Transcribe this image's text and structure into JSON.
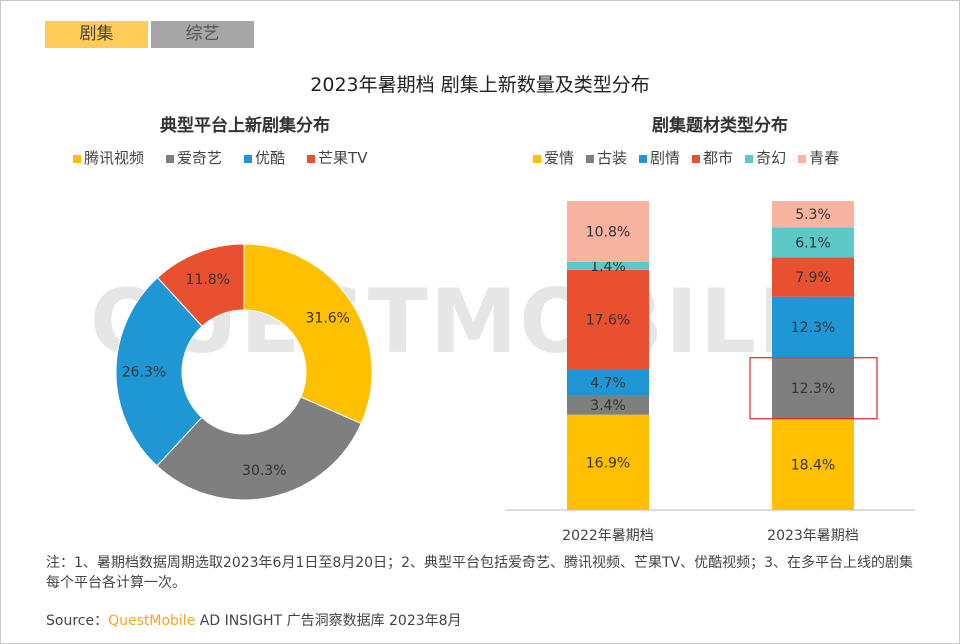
{
  "tabs": [
    {
      "label": "剧集",
      "active": true
    },
    {
      "label": "综艺",
      "active": false
    }
  ],
  "title": "2023年暑期档 剧集上新数量及类型分布",
  "watermark": "QUESTMOBILE",
  "chart_data": [
    {
      "type": "pie",
      "donut": true,
      "title": "典型平台上新剧集分布",
      "legend": [
        "腾讯视频",
        "爱奇艺",
        "优酷",
        "芒果TV"
      ],
      "values": [
        31.6,
        30.3,
        26.3,
        11.8
      ],
      "labels": [
        "31.6%",
        "30.3%",
        "26.3%",
        "11.8%"
      ],
      "colors": [
        "#ffc000",
        "#7f7f7f",
        "#1f97d4",
        "#e8502f"
      ],
      "legend_placement": "top"
    },
    {
      "type": "bar",
      "stacked": true,
      "title": "剧集题材类型分布",
      "categories": [
        "2022年暑期档",
        "2023年暑期档"
      ],
      "series": [
        {
          "name": "爱情",
          "values": [
            16.9,
            18.4
          ],
          "color": "#ffc000"
        },
        {
          "name": "古装",
          "values": [
            3.4,
            12.3
          ],
          "color": "#7f7f7f"
        },
        {
          "name": "剧情",
          "values": [
            4.7,
            12.3
          ],
          "color": "#1f97d4"
        },
        {
          "name": "都市",
          "values": [
            17.6,
            7.9
          ],
          "color": "#e8502f"
        },
        {
          "name": "奇幻",
          "values": [
            1.4,
            6.1
          ],
          "color": "#5cc8c8"
        },
        {
          "name": "青春",
          "values": [
            10.8,
            5.3
          ],
          "color": "#f8b4a0"
        }
      ],
      "highlight": {
        "category": "2023年暑期档",
        "series": "古装",
        "color": "#d9262b"
      },
      "legend_placement": "top",
      "grid": false
    }
  ],
  "note": "注：1、暑期档数据周期选取2023年6月1日至8月20日；2、典型平台包括爱奇艺、腾讯视频、芒果TV、优酷视频；3、在多平台上线的剧集每个平台各计算一次。",
  "source": {
    "prefix": "Source：",
    "brand": "QuestMobile",
    "suffix": " AD INSIGHT 广告洞察数据库 2023年8月"
  }
}
